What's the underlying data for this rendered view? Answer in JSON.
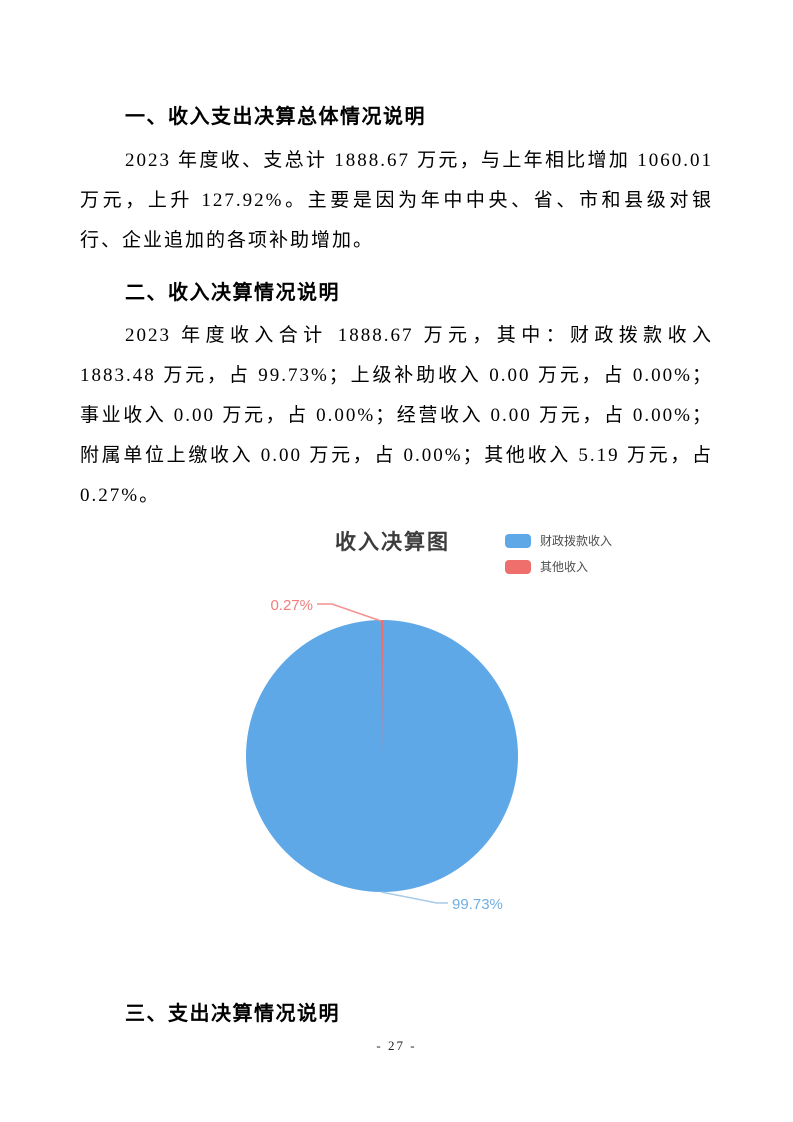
{
  "document": {
    "sections": [
      {
        "heading": "一、收入支出决算总体情况说明",
        "paragraph": "2023 年度收、支总计 1888.67 万元，与上年相比增加 1060.01 万元，上升 127.92%。主要是因为年中中央、省、市和县级对银行、企业追加的各项补助增加。"
      },
      {
        "heading": "二、收入决算情况说明",
        "paragraph": "2023 年度收入合计 1888.67 万元，其中：财政拨款收入 1883.48 万元，占 99.73%；上级补助收入 0.00 万元，占 0.00%；事业收入 0.00 万元，占 0.00%；经营收入 0.00 万元，占 0.00%；附属单位上缴收入 0.00 万元，占 0.00%；其他收入 5.19 万元，占 0.27%。"
      },
      {
        "heading": "三、支出决算情况说明",
        "paragraph": ""
      }
    ],
    "page_number": "- 27 -"
  },
  "chart_data": {
    "type": "pie",
    "title": "收入决算图",
    "legend_position": "top-right",
    "unit": "万元",
    "slices": [
      {
        "label": "财政拨款收入",
        "value": 1883.48,
        "percent": 99.73,
        "percent_label": "99.73%",
        "color": "#5FA8E8",
        "label_color": "#6FAEE3",
        "leader_color": "#A8CBEA"
      },
      {
        "label": "其他收入",
        "value": 5.19,
        "percent": 0.27,
        "percent_label": "0.27%",
        "color": "#EE6F6B",
        "label_color": "#EF7E7B",
        "leader_color": "#F2918E"
      }
    ]
  }
}
